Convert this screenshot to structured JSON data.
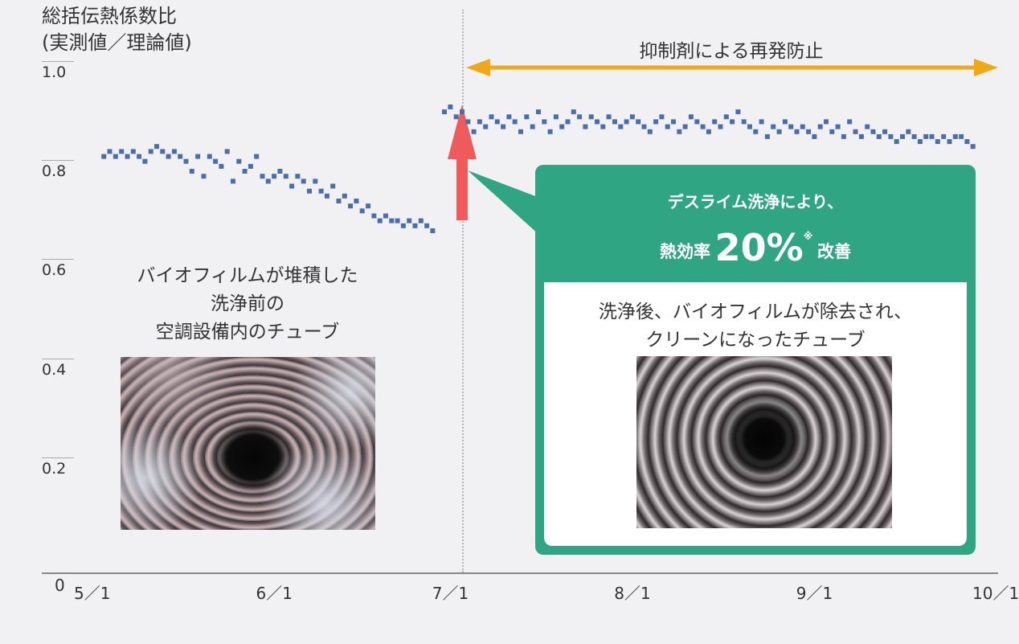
{
  "chart_data": {
    "type": "scatter",
    "ylabel_line1": "総括伝熱係数比",
    "ylabel_line2": "(実測値／理論値)",
    "ylim": [
      0,
      1.0
    ],
    "y_ticks": [
      "0",
      "0.2",
      "0.4",
      "0.6",
      "0.8",
      "1.0"
    ],
    "x_ticks": [
      "5／1",
      "6／1",
      "7／1",
      "8／1",
      "9／1",
      "10／1"
    ],
    "x_start": "5/1",
    "x_end": "10/1",
    "series": [
      {
        "name": "",
        "x": [
          "5/5",
          "5/6",
          "5/7",
          "5/8",
          "5/9",
          "5/10",
          "5/11",
          "5/12",
          "5/13",
          "5/14",
          "5/15",
          "5/16",
          "5/17",
          "5/18",
          "5/19",
          "5/20",
          "5/21",
          "5/22",
          "5/23",
          "5/24",
          "5/25",
          "5/26",
          "5/27",
          "5/28",
          "5/29",
          "5/30",
          "5/31",
          "6/1",
          "6/2",
          "6/3",
          "6/4",
          "6/5",
          "6/6",
          "6/7",
          "6/8",
          "6/9",
          "6/10",
          "6/11",
          "6/12",
          "6/13",
          "6/14",
          "6/15",
          "6/16",
          "6/17",
          "6/18",
          "6/19",
          "6/20",
          "6/21",
          "6/22",
          "6/23",
          "6/24",
          "6/25",
          "6/26",
          "6/27",
          "6/28",
          "6/29",
          "6/30",
          "7/2",
          "7/3",
          "7/4",
          "7/5",
          "7/6",
          "7/7",
          "7/8",
          "7/9",
          "7/10",
          "7/11",
          "7/12",
          "7/13",
          "7/14",
          "7/15",
          "7/16",
          "7/17",
          "7/18",
          "7/19",
          "7/20",
          "7/21",
          "7/22",
          "7/23",
          "7/24",
          "7/25",
          "7/26",
          "7/27",
          "7/28",
          "7/29",
          "7/30",
          "7/31",
          "8/1",
          "8/2",
          "8/3",
          "8/4",
          "8/5",
          "8/6",
          "8/7",
          "8/8",
          "8/9",
          "8/10",
          "8/11",
          "8/12",
          "8/13",
          "8/14",
          "8/15",
          "8/16",
          "8/17",
          "8/18",
          "8/19",
          "8/20",
          "8/21",
          "8/22",
          "8/23",
          "8/24",
          "8/25",
          "8/26",
          "8/27",
          "8/28",
          "8/29",
          "8/30",
          "8/31",
          "9/1",
          "9/2",
          "9/3",
          "9/4",
          "9/5",
          "9/6",
          "9/7",
          "9/8",
          "9/9",
          "9/10",
          "9/11",
          "9/12",
          "9/13",
          "9/14",
          "9/15",
          "9/16",
          "9/17",
          "9/18",
          "9/19",
          "9/20",
          "9/21",
          "9/22",
          "9/23",
          "9/24",
          "9/25",
          "9/26",
          "9/27",
          "9/28",
          "9/29",
          "9/30"
        ],
        "y": [
          0.84,
          0.85,
          0.84,
          0.85,
          0.84,
          0.85,
          0.84,
          0.83,
          0.85,
          0.86,
          0.85,
          0.84,
          0.85,
          0.84,
          0.83,
          0.81,
          0.84,
          0.8,
          0.84,
          0.83,
          0.82,
          0.85,
          0.79,
          0.83,
          0.81,
          0.82,
          0.84,
          0.8,
          0.79,
          0.8,
          0.81,
          0.8,
          0.78,
          0.8,
          0.79,
          0.77,
          0.79,
          0.77,
          0.76,
          0.78,
          0.75,
          0.76,
          0.74,
          0.75,
          0.73,
          0.74,
          0.72,
          0.71,
          0.72,
          0.71,
          0.71,
          0.7,
          0.71,
          0.7,
          0.71,
          0.7,
          0.69,
          0.93,
          0.94,
          0.92,
          0.93,
          0.91,
          0.89,
          0.91,
          0.9,
          0.92,
          0.91,
          0.9,
          0.92,
          0.91,
          0.89,
          0.92,
          0.9,
          0.93,
          0.91,
          0.89,
          0.92,
          0.9,
          0.91,
          0.93,
          0.92,
          0.9,
          0.92,
          0.91,
          0.9,
          0.92,
          0.91,
          0.9,
          0.91,
          0.92,
          0.91,
          0.9,
          0.89,
          0.91,
          0.92,
          0.9,
          0.91,
          0.89,
          0.9,
          0.92,
          0.91,
          0.9,
          0.89,
          0.91,
          0.9,
          0.92,
          0.91,
          0.93,
          0.91,
          0.9,
          0.89,
          0.91,
          0.88,
          0.9,
          0.89,
          0.91,
          0.9,
          0.89,
          0.9,
          0.89,
          0.88,
          0.9,
          0.91,
          0.89,
          0.9,
          0.88,
          0.91,
          0.89,
          0.88,
          0.9,
          0.89,
          0.88,
          0.89,
          0.88,
          0.87,
          0.88,
          0.89,
          0.88,
          0.87,
          0.88,
          0.88,
          0.87,
          0.88,
          0.87,
          0.88,
          0.88,
          0.87,
          0.86
        ]
      }
    ],
    "marker_color": "#4a6fa8",
    "period_arrow_color": "#f0a818",
    "cleaning_arrow_color": "#ef5b5b"
  },
  "annotations": {
    "period_label": "抑制剤による再発防止",
    "before_caption_line1": "バイオフィルムが堆積した",
    "before_caption_line2": "洗浄前の",
    "before_caption_line3": "空調設備内のチューブ",
    "callout_line1": "デスライム洗浄により、",
    "callout_prefix": "熱効率",
    "callout_value": "20%",
    "callout_note": "※",
    "callout_suffix": "改善",
    "after_caption_line1": "洗浄後、バイオフィルムが除去され、",
    "after_caption_line2": "クリーンになったチューブ"
  },
  "colors": {
    "callout_green": "#30a584",
    "background": "#f1f1f3"
  }
}
